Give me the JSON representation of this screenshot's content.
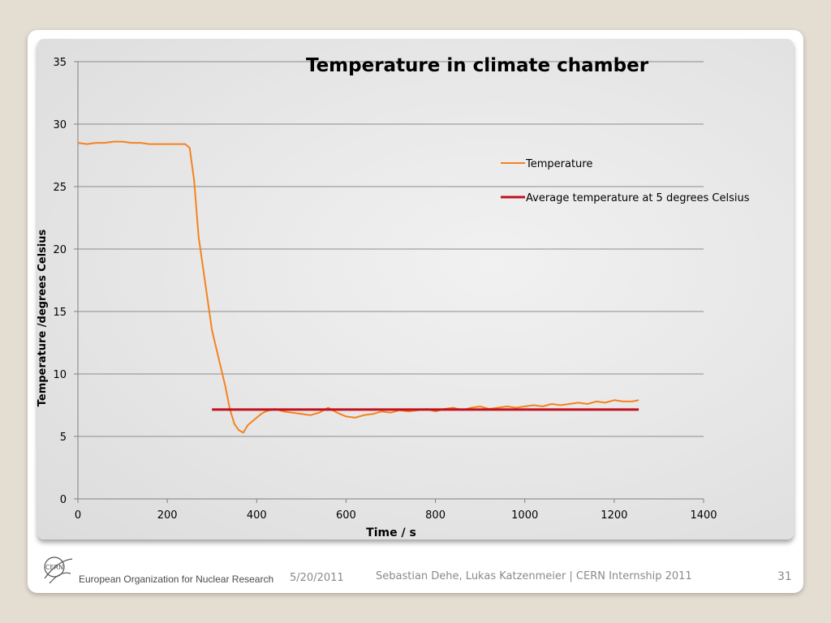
{
  "chart_data": {
    "type": "line",
    "title": "Temperature in climate chamber",
    "xlabel": "Time / s",
    "ylabel": "Temperature /degrees Celsius",
    "xlim": [
      0,
      1400
    ],
    "ylim": [
      0,
      35
    ],
    "xticks": [
      0,
      200,
      400,
      600,
      800,
      1000,
      1200,
      1400
    ],
    "yticks": [
      0,
      5,
      10,
      15,
      20,
      25,
      30,
      35
    ],
    "grid": "horizontal",
    "legend_position": "right",
    "series": [
      {
        "name": "Temperature",
        "color": "#f5821f",
        "x": [
          0,
          20,
          40,
          60,
          80,
          100,
          120,
          140,
          160,
          180,
          200,
          220,
          240,
          250,
          260,
          270,
          280,
          290,
          300,
          310,
          320,
          330,
          340,
          350,
          360,
          370,
          380,
          390,
          400,
          410,
          420,
          430,
          440,
          460,
          480,
          500,
          520,
          540,
          560,
          580,
          600,
          620,
          640,
          660,
          680,
          700,
          720,
          740,
          760,
          780,
          800,
          820,
          840,
          860,
          880,
          900,
          920,
          940,
          960,
          980,
          1000,
          1020,
          1040,
          1060,
          1080,
          1100,
          1120,
          1140,
          1160,
          1180,
          1200,
          1220,
          1240,
          1255
        ],
        "y": [
          28.5,
          28.4,
          28.5,
          28.5,
          28.6,
          28.6,
          28.5,
          28.5,
          28.4,
          28.4,
          28.4,
          28.4,
          28.4,
          28.1,
          25.5,
          21.0,
          18.5,
          16.0,
          13.5,
          12.0,
          10.5,
          9.0,
          7.2,
          6.0,
          5.5,
          5.3,
          5.9,
          6.2,
          6.5,
          6.8,
          7.0,
          7.1,
          7.2,
          7.0,
          6.9,
          6.8,
          6.7,
          6.9,
          7.3,
          6.9,
          6.6,
          6.5,
          6.7,
          6.8,
          7.0,
          6.9,
          7.1,
          7.0,
          7.1,
          7.2,
          7.0,
          7.2,
          7.3,
          7.1,
          7.3,
          7.4,
          7.2,
          7.3,
          7.4,
          7.3,
          7.4,
          7.5,
          7.4,
          7.6,
          7.5,
          7.6,
          7.7,
          7.6,
          7.8,
          7.7,
          7.9,
          7.8,
          7.8,
          7.9
        ]
      },
      {
        "name": "Average temperature at 5 degrees Celsius",
        "color": "#c0111f",
        "x": [
          300,
          1255
        ],
        "y": [
          7.15,
          7.15
        ]
      }
    ]
  },
  "footer": {
    "organization": "European Organization for Nuclear Research",
    "date": "5/20/2011",
    "credit": "Sebastian Dehe, Lukas Katzenmeier | CERN Internship 2011",
    "page_number": "31",
    "logo_text": "CERN"
  }
}
